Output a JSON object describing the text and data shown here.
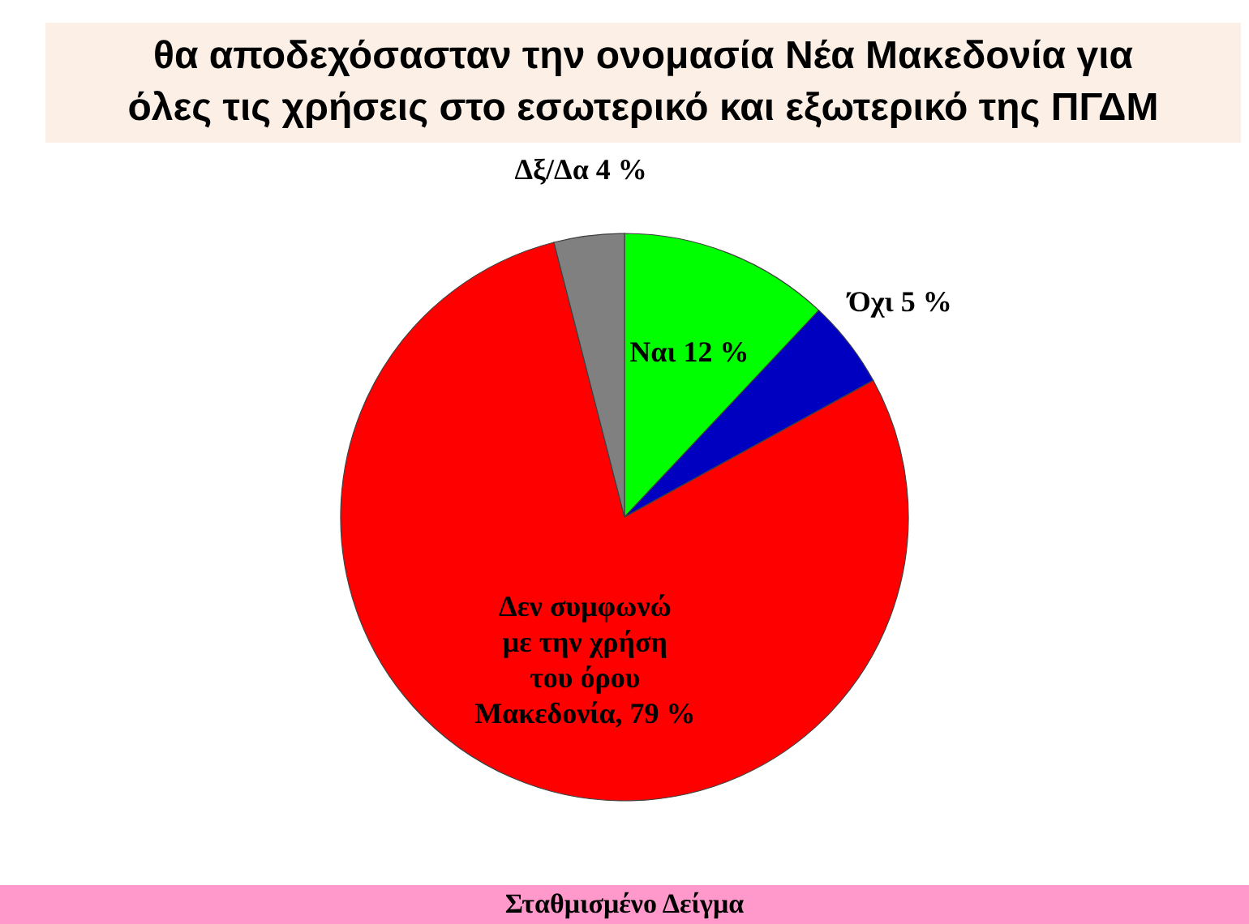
{
  "chart_data": {
    "type": "pie",
    "title": "θα αποδεχόσασταν την ονομασία Νέα Μακεδονία για όλες τις χρήσεις στο εσωτερικό και εξωτερικό της ΠΓΔΜ",
    "categories": [
      "Ναι",
      "Όχι",
      "Δεν συμφωνώ με την χρήση του όρου Μακεδονία",
      "Δξ/Δα"
    ],
    "values": [
      12,
      5,
      79,
      4
    ],
    "colors": [
      "#00ff00",
      "#0000c0",
      "#ff0000",
      "#808080"
    ],
    "value_labels": [
      "12 %",
      "5 %",
      "79 %",
      "4 %"
    ],
    "annotations": [
      "Σταθμισμένο Δείγμα"
    ]
  }
}
